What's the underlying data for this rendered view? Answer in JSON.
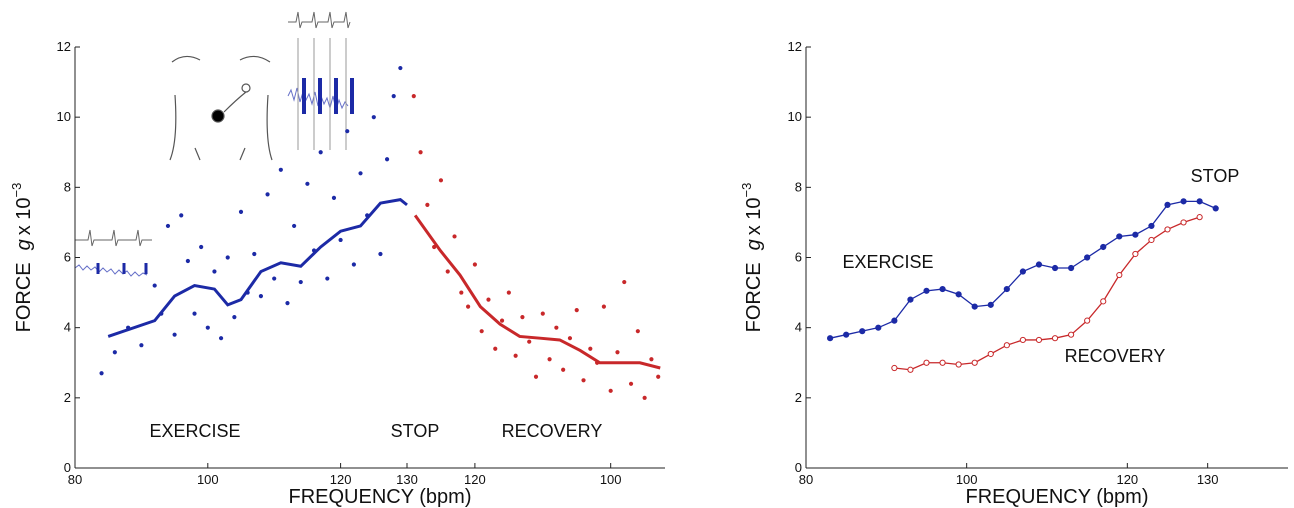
{
  "chart_data": [
    {
      "type": "scatter",
      "ylabel": {
        "prefix": "FORCE",
        "var": "g",
        "mult": "x 10",
        "exp": "−3"
      },
      "xlabel": "FREQUENCY (bpm)",
      "xlim": [
        80,
        130
      ],
      "xticks": [
        80,
        100,
        120,
        130
      ],
      "x2lim": [
        130,
        92
      ],
      "x2ticks": [
        120,
        100
      ],
      "ylim": [
        0,
        12
      ],
      "yticks": [
        0,
        2,
        4,
        6,
        8,
        10,
        12
      ],
      "annotations": [
        "STOP"
      ],
      "series": [
        {
          "name": "EXERCISE",
          "color": "#1c2aa6",
          "mode": "markers",
          "x": [
            84,
            86,
            88,
            90,
            92,
            93,
            94,
            95,
            96,
            97,
            98,
            99,
            100,
            101,
            102,
            103,
            104,
            105,
            106,
            107,
            108,
            109,
            110,
            111,
            112,
            113,
            114,
            115,
            116,
            117,
            118,
            119,
            120,
            121,
            122,
            123,
            124,
            125,
            126,
            127,
            128,
            129
          ],
          "values": [
            2.7,
            3.3,
            4.0,
            3.5,
            5.2,
            4.4,
            6.9,
            3.8,
            7.2,
            5.9,
            4.4,
            6.3,
            4.0,
            5.6,
            3.7,
            6.0,
            4.3,
            7.3,
            5.0,
            6.1,
            4.9,
            7.8,
            5.4,
            8.5,
            4.7,
            6.9,
            5.3,
            8.1,
            6.2,
            9.0,
            5.4,
            7.7,
            6.5,
            9.6,
            5.8,
            8.4,
            7.2,
            10.0,
            6.1,
            8.8,
            10.6,
            11.4
          ]
        },
        {
          "color": "#1c2aa6",
          "mode": "line",
          "x": [
            85,
            92,
            95,
            98,
            101,
            103,
            105,
            108,
            111,
            114,
            117,
            120,
            123,
            126,
            129,
            130
          ],
          "values": [
            3.75,
            4.2,
            4.9,
            5.2,
            5.1,
            4.65,
            4.8,
            5.6,
            5.85,
            5.75,
            6.3,
            6.75,
            6.9,
            7.55,
            7.65,
            7.5
          ]
        },
        {
          "name": "RECOVERY",
          "color": "#c8282a",
          "mode": "markers",
          "axis": "x2",
          "x": [
            129,
            128,
            127,
            126,
            125,
            124,
            123,
            122,
            121,
            120,
            119,
            118,
            117,
            116,
            115,
            114,
            113,
            112,
            111,
            110,
            109,
            108,
            107,
            106,
            105,
            104,
            103,
            102,
            101,
            100,
            99,
            98,
            97,
            96,
            95,
            94,
            93
          ],
          "values": [
            10.6,
            9.0,
            7.5,
            6.3,
            8.2,
            5.6,
            6.6,
            5.0,
            4.6,
            5.8,
            3.9,
            4.8,
            3.4,
            4.2,
            5.0,
            3.2,
            4.3,
            3.6,
            2.6,
            4.4,
            3.1,
            4.0,
            2.8,
            3.7,
            4.5,
            2.5,
            3.4,
            3.0,
            4.6,
            2.2,
            3.3,
            5.3,
            2.4,
            3.9,
            2.0,
            3.1,
            2.6
          ]
        },
        {
          "color": "#c8282a",
          "mode": "line",
          "axis": "x2",
          "x": [
            128.8,
            125.1,
            122.2,
            119.2,
            116.3,
            113.4,
            110.4,
            107.5,
            104.5,
            101.6,
            98.6,
            95.7,
            92.7
          ],
          "values": [
            7.2,
            6.2,
            5.5,
            4.6,
            4.1,
            3.75,
            3.7,
            3.65,
            3.35,
            3.0,
            3.0,
            3.0,
            2.85
          ]
        }
      ]
    },
    {
      "type": "line",
      "ylabel": {
        "prefix": "FORCE",
        "var": "g",
        "mult": "x 10",
        "exp": "−3"
      },
      "xlabel": "FREQUENCY (bpm)",
      "xlim": [
        80,
        140
      ],
      "xticks": [
        80,
        100,
        120,
        130
      ],
      "ylim": [
        0,
        12
      ],
      "yticks": [
        0,
        2,
        4,
        6,
        8,
        10,
        12
      ],
      "annotations": [
        "STOP"
      ],
      "series": [
        {
          "name": "EXERCISE",
          "color": "#1c2aa6",
          "marker": "filled",
          "x": [
            83,
            85,
            87,
            89,
            91,
            93,
            95,
            97,
            99,
            101,
            103,
            105,
            107,
            109,
            111,
            113,
            115,
            117,
            119,
            121,
            123,
            125,
            127,
            129,
            131
          ],
          "values": [
            3.7,
            3.8,
            3.9,
            4.0,
            4.2,
            4.8,
            5.05,
            5.1,
            4.95,
            4.6,
            4.65,
            5.1,
            5.6,
            5.8,
            5.7,
            5.7,
            6.0,
            6.3,
            6.6,
            6.65,
            6.9,
            7.5,
            7.6,
            7.6,
            7.4
          ]
        },
        {
          "name": "RECOVERY",
          "color": "#c8282a",
          "marker": "open",
          "x": [
            91,
            93,
            95,
            97,
            99,
            101,
            103,
            105,
            107,
            109,
            111,
            113,
            115,
            117,
            119,
            121,
            123,
            125,
            127,
            129
          ],
          "values": [
            2.85,
            2.8,
            3.0,
            3.0,
            2.95,
            3.0,
            3.25,
            3.5,
            3.65,
            3.65,
            3.7,
            3.8,
            4.2,
            4.75,
            5.5,
            6.1,
            6.5,
            6.8,
            7.0,
            7.15
          ]
        }
      ]
    }
  ]
}
